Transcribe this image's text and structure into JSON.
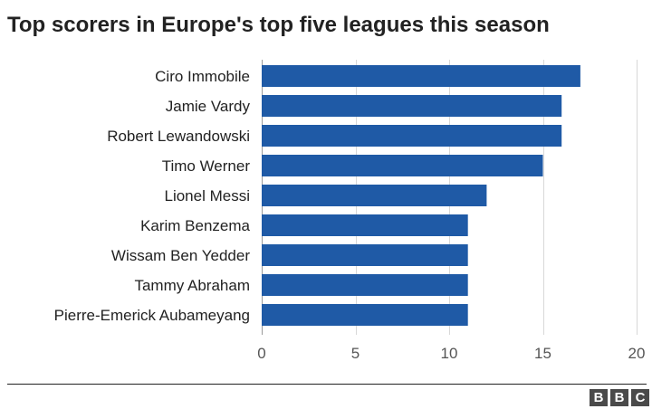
{
  "chart_data": {
    "type": "bar",
    "orientation": "horizontal",
    "title": "Top scorers in Europe's top five leagues this season",
    "categories": [
      "Ciro Immobile",
      "Jamie Vardy",
      "Robert Lewandowski",
      "Timo Werner",
      "Lionel Messi",
      "Karim Benzema",
      "Wissam Ben Yedder",
      "Tammy Abraham",
      "Pierre-Emerick Aubameyang"
    ],
    "values": [
      17,
      16,
      16,
      15,
      12,
      11,
      11,
      11,
      11
    ],
    "xlim": [
      0,
      20
    ],
    "xticks": [
      0,
      5,
      10,
      15,
      20
    ],
    "xlabel": "",
    "ylabel": "",
    "grid": "vertical",
    "legend": "none"
  },
  "colors": {
    "bar": "#1f5aa6",
    "grid": "#d8d8d8",
    "text": "#222222"
  },
  "footer": {
    "logo_letters": [
      "B",
      "B",
      "C"
    ]
  }
}
